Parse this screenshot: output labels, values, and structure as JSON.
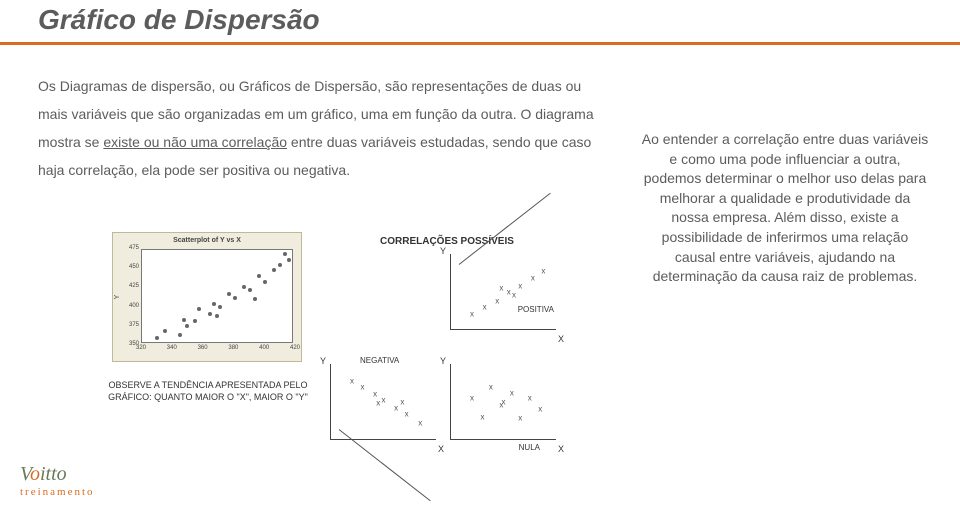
{
  "title": "Gráfico de Dispersão",
  "body_html": "Os Diagramas de dispersão, ou Gráficos de Dispersão, são representações de duas ou mais variáveis que são organizadas em um gráfico, uma em função da outra. O diagrama mostra se <span class='hi'>existe ou não uma correlação</span> entre duas variáveis estudadas, sendo que caso haja correlação, ela pode ser positiva ou negativa.",
  "right_html": "Ao entender a correlação entre duas variáveis e como uma pode influenciar a outra, podemos determinar o melhor uso delas para melhorar a qualidade e produtividade da nossa empresa. Além disso, existe a possibilidade de inferirmos uma relação causal entre variáveis, ajudando na determinação da causa raiz de problemas.",
  "observe_note": "OBSERVE A TENDÊNCIA APRESENTADA PELO GRÁFICO: QUANTO MAIOR O \"X\", MAIOR O \"Y\"",
  "scatter": {
    "title": "Scatterplot of Y vs X",
    "y_axis_label": "Y",
    "xlim": [
      320,
      420
    ],
    "ylim": [
      350,
      475
    ],
    "xticks": [
      320,
      340,
      360,
      380,
      400,
      420
    ],
    "yticks": [
      350,
      375,
      400,
      425,
      450,
      475
    ],
    "points": [
      [
        330,
        355
      ],
      [
        335,
        365
      ],
      [
        345,
        360
      ],
      [
        348,
        380
      ],
      [
        355,
        378
      ],
      [
        358,
        395
      ],
      [
        365,
        388
      ],
      [
        368,
        402
      ],
      [
        372,
        397
      ],
      [
        378,
        415
      ],
      [
        382,
        410
      ],
      [
        388,
        425
      ],
      [
        392,
        420
      ],
      [
        398,
        440
      ],
      [
        402,
        432
      ],
      [
        408,
        448
      ],
      [
        412,
        455
      ],
      [
        418,
        462
      ],
      [
        415,
        470
      ],
      [
        395,
        408
      ],
      [
        370,
        385
      ],
      [
        350,
        372
      ]
    ],
    "point_color": "#666666",
    "background": "#f0edde",
    "plot_bg": "#ffffff"
  },
  "correlations": {
    "header": "CORRELAÇÕES POSSÍVEIS",
    "pos_label": "POSITIVA",
    "neg_label": "NEGATIVA",
    "nul_label": "NULA",
    "x_label": "X",
    "y_label": "Y",
    "marker": "x",
    "marker_color": "#555555",
    "line_color": "#555555",
    "pos_points": [
      [
        20,
        20
      ],
      [
        32,
        30
      ],
      [
        44,
        38
      ],
      [
        55,
        50
      ],
      [
        66,
        58
      ],
      [
        78,
        68
      ],
      [
        88,
        78
      ],
      [
        48,
        55
      ],
      [
        60,
        45
      ]
    ],
    "neg_points": [
      [
        20,
        78
      ],
      [
        30,
        70
      ],
      [
        42,
        60
      ],
      [
        50,
        52
      ],
      [
        62,
        42
      ],
      [
        72,
        33
      ],
      [
        85,
        22
      ],
      [
        45,
        48
      ],
      [
        68,
        50
      ]
    ],
    "nul_points": [
      [
        20,
        55
      ],
      [
        30,
        30
      ],
      [
        38,
        70
      ],
      [
        48,
        45
      ],
      [
        58,
        62
      ],
      [
        66,
        28
      ],
      [
        75,
        55
      ],
      [
        85,
        40
      ],
      [
        50,
        50
      ]
    ]
  },
  "logo": {
    "brand_pre": "V",
    "brand_o": "o",
    "brand_post": "itto",
    "sub": "treinamento"
  },
  "colors": {
    "accent": "#d96d24",
    "text": "#5c5c5c"
  }
}
